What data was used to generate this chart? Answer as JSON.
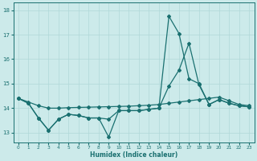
{
  "xlabel": "Humidex (Indice chaleur)",
  "bg_color": "#cceaea",
  "line_color": "#1a7070",
  "grid_color": "#b0d8d8",
  "xlim": [
    -0.5,
    23.5
  ],
  "ylim": [
    12.6,
    18.3
  ],
  "xticks": [
    0,
    1,
    2,
    3,
    4,
    5,
    6,
    7,
    8,
    9,
    10,
    11,
    12,
    13,
    14,
    15,
    16,
    17,
    18,
    19,
    20,
    21,
    22,
    23
  ],
  "yticks": [
    13,
    14,
    15,
    16,
    17,
    18
  ],
  "line1_x": [
    0,
    1,
    2,
    3,
    4,
    5,
    6,
    7,
    8,
    9,
    10,
    11,
    12,
    13,
    14,
    15,
    16,
    17,
    18,
    19,
    20,
    21,
    22,
    23
  ],
  "line1_y": [
    14.4,
    14.25,
    14.1,
    14.0,
    14.0,
    14.02,
    14.03,
    14.04,
    14.05,
    14.06,
    14.07,
    14.08,
    14.1,
    14.12,
    14.15,
    14.2,
    14.25,
    14.3,
    14.35,
    14.4,
    14.45,
    14.3,
    14.15,
    14.1
  ],
  "line2_x": [
    0,
    1,
    2,
    3,
    4,
    5,
    6,
    7,
    8,
    9,
    10,
    11,
    12,
    13,
    14,
    15,
    16,
    17,
    18,
    19,
    20,
    21,
    22,
    23
  ],
  "line2_y": [
    14.4,
    14.2,
    13.6,
    13.1,
    13.55,
    13.75,
    13.7,
    13.6,
    13.6,
    13.55,
    13.9,
    13.9,
    13.9,
    13.95,
    14.0,
    14.9,
    15.55,
    16.65,
    14.95,
    14.15,
    14.35,
    14.2,
    14.1,
    14.05
  ],
  "line3_x": [
    0,
    1,
    2,
    3,
    4,
    5,
    6,
    7,
    8,
    9,
    10,
    11,
    12,
    13,
    14,
    15,
    16,
    17,
    18,
    19,
    20,
    21,
    22,
    23
  ],
  "line3_y": [
    14.4,
    14.2,
    13.6,
    13.1,
    13.55,
    13.75,
    13.7,
    13.6,
    13.6,
    12.82,
    13.9,
    13.9,
    13.9,
    13.95,
    14.0,
    17.75,
    17.05,
    15.2,
    15.0,
    14.15,
    14.35,
    14.2,
    14.1,
    14.05
  ]
}
